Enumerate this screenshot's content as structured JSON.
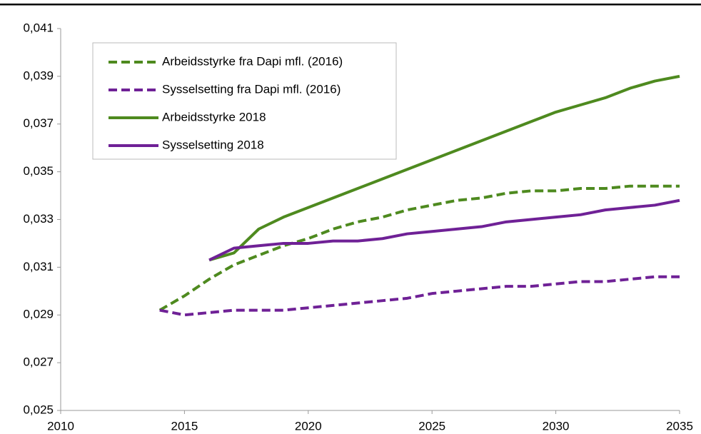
{
  "chart_data": {
    "type": "line",
    "x": [
      2014,
      2015,
      2016,
      2017,
      2018,
      2019,
      2020,
      2021,
      2022,
      2023,
      2024,
      2025,
      2026,
      2027,
      2028,
      2029,
      2030,
      2031,
      2032,
      2033,
      2034,
      2035
    ],
    "series": [
      {
        "name": "Arbeidsstyrke fra Dapi mfl. (2016)",
        "color": "#4e8a1f",
        "dashed": true,
        "values": [
          0.0292,
          0.0298,
          0.0305,
          0.0311,
          0.0315,
          0.0319,
          0.0322,
          0.0326,
          0.0329,
          0.0331,
          0.0334,
          0.0336,
          0.0338,
          0.0339,
          0.0341,
          0.0342,
          0.0342,
          0.0343,
          0.0343,
          0.0344,
          0.0344,
          0.0344
        ]
      },
      {
        "name": "Sysselsetting fra Dapi mfl. (2016)",
        "color": "#6f2196",
        "dashed": true,
        "values": [
          0.0292,
          0.029,
          0.0291,
          0.0292,
          0.0292,
          0.0292,
          0.0293,
          0.0294,
          0.0295,
          0.0296,
          0.0297,
          0.0299,
          0.03,
          0.0301,
          0.0302,
          0.0302,
          0.0303,
          0.0304,
          0.0304,
          0.0305,
          0.0306,
          0.0306
        ]
      },
      {
        "name": "Arbeidsstyrke 2018",
        "color": "#4e8a1f",
        "dashed": false,
        "values": [
          null,
          null,
          0.0313,
          0.0316,
          0.0326,
          0.0331,
          0.0335,
          0.0339,
          0.0343,
          0.0347,
          0.0351,
          0.0355,
          0.0359,
          0.0363,
          0.0367,
          0.0371,
          0.0375,
          0.0378,
          0.0381,
          0.0385,
          0.0388,
          0.039
        ]
      },
      {
        "name": "Sysselsetting 2018",
        "color": "#6f2196",
        "dashed": false,
        "values": [
          null,
          null,
          0.0313,
          0.0318,
          0.0319,
          0.032,
          0.032,
          0.0321,
          0.0321,
          0.0322,
          0.0324,
          0.0325,
          0.0326,
          0.0327,
          0.0329,
          0.033,
          0.0331,
          0.0332,
          0.0334,
          0.0335,
          0.0336,
          0.0338
        ]
      }
    ],
    "xlim": [
      2010,
      2035
    ],
    "xticks": [
      2010,
      2015,
      2020,
      2025,
      2030,
      2035
    ],
    "ylim": [
      0.025,
      0.041
    ],
    "yticks": [
      {
        "value": 0.025,
        "label": "0,025"
      },
      {
        "value": 0.027,
        "label": "0,027"
      },
      {
        "value": 0.029,
        "label": "0,029"
      },
      {
        "value": 0.031,
        "label": "0,031"
      },
      {
        "value": 0.033,
        "label": "0,033"
      },
      {
        "value": 0.035,
        "label": "0,035"
      },
      {
        "value": 0.037,
        "label": "0,037"
      },
      {
        "value": 0.039,
        "label": "0,039"
      },
      {
        "value": 0.041,
        "label": "0,041"
      }
    ],
    "grid": false,
    "legend": "upper left"
  }
}
